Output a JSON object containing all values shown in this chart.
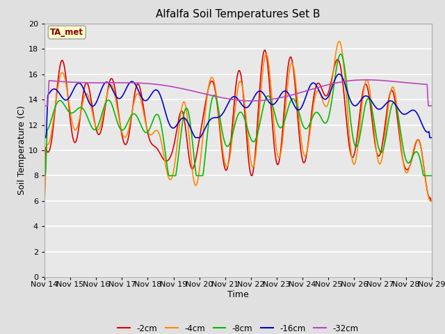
{
  "title": "Alfalfa Soil Temperatures Set B",
  "xlabel": "Time",
  "ylabel": "Soil Temperature (C)",
  "ylim": [
    0,
    20
  ],
  "yticks": [
    0,
    2,
    4,
    6,
    8,
    10,
    12,
    14,
    16,
    18,
    20
  ],
  "background_color": "#e0e0e0",
  "plot_bg_color": "#e8e8e8",
  "annotation_text": "TA_met",
  "annotation_bg": "#ffffcc",
  "annotation_border": "#aaaaaa",
  "annotation_text_color": "#880000",
  "series_colors": {
    "-2cm": "#dd0000",
    "-4cm": "#ff8800",
    "-8cm": "#00bb00",
    "-16cm": "#0000cc",
    "-32cm": "#bb44bb"
  },
  "legend_labels": [
    "-2cm",
    "-4cm",
    "-8cm",
    "-16cm",
    "-32cm"
  ],
  "x_tick_labels": [
    "Nov 14",
    "Nov 15",
    "Nov 16",
    "Nov 17",
    "Nov 18",
    "Nov 19",
    "Nov 20",
    "Nov 21",
    "Nov 22",
    "Nov 23",
    "Nov 24",
    "Nov 25",
    "Nov 26",
    "Nov 27",
    "Nov 28",
    "Nov 29"
  ],
  "days": 15,
  "num_points": 600
}
